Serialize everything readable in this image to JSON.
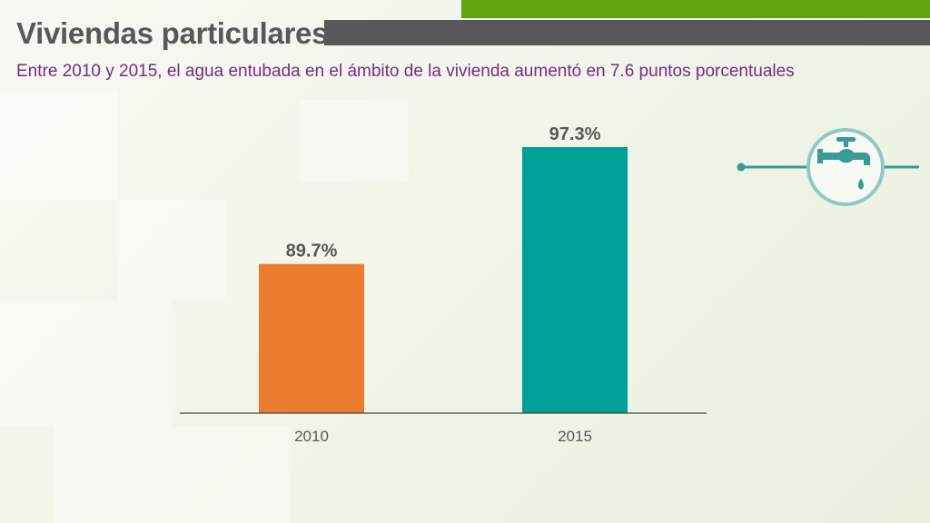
{
  "header": {
    "title": "Viviendas particulares",
    "subtitle": "Entre 2010 y 2015, el agua entubada en el ámbito de la vivienda aumentó en 7.6 puntos porcentuales"
  },
  "colors": {
    "accent_green": "#5fa30f",
    "header_gray": "#58585a",
    "subtitle_purple": "#7b2a83",
    "bar_2010": "#ec7c30",
    "bar_2015": "#00a096",
    "icon_teal": "#3a9a96",
    "icon_ring": "#8fc9c6"
  },
  "icon": {
    "name": "water-faucet-icon"
  },
  "chart_data": {
    "type": "bar",
    "categories": [
      "2010",
      "2015"
    ],
    "values": [
      89.7,
      97.3
    ],
    "value_labels": [
      "89.7%",
      "97.3%"
    ],
    "bar_colors": [
      "#ec7c30",
      "#00a096"
    ],
    "grid": false,
    "legend": "none"
  }
}
